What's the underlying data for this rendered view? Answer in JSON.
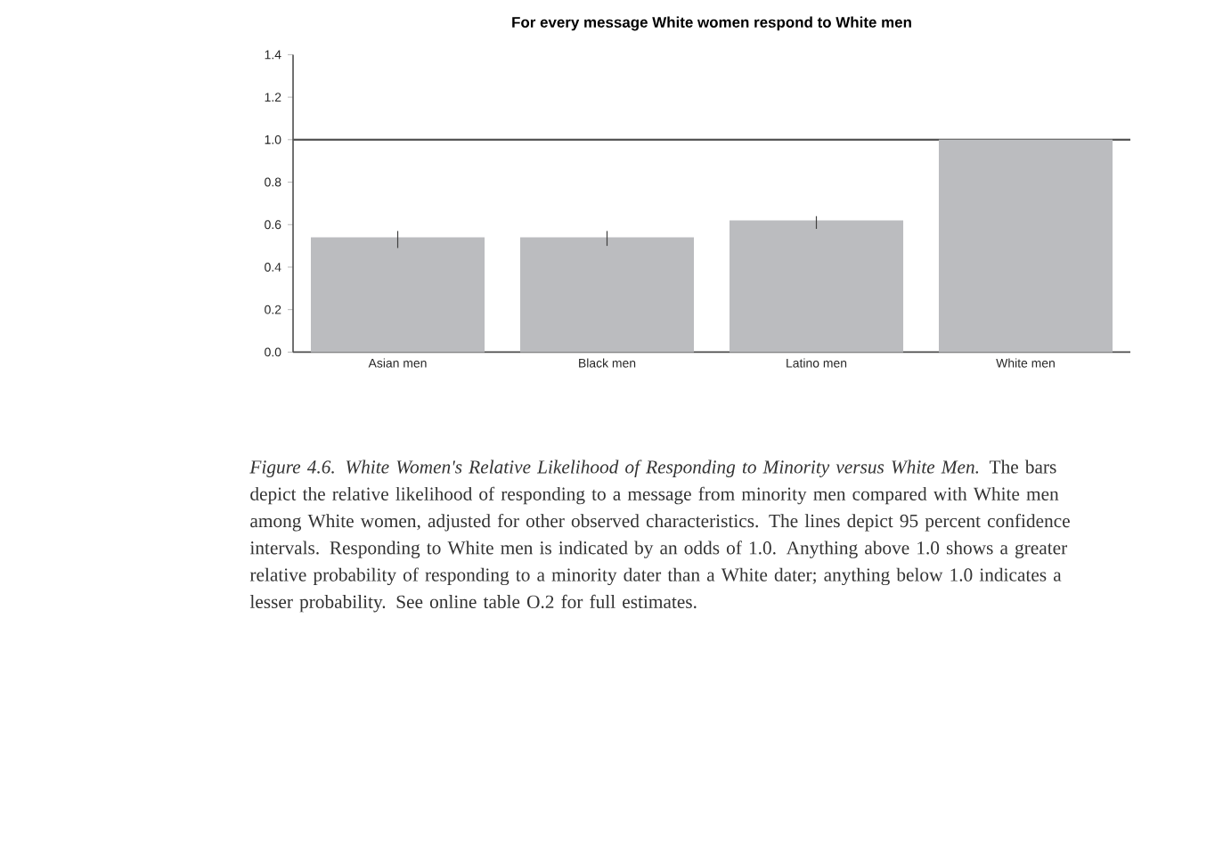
{
  "chart_data": {
    "type": "bar",
    "title": "For every message White women respond to White men",
    "categories": [
      "Asian men",
      "Black men",
      "Latino men",
      "White men"
    ],
    "values": [
      0.54,
      0.54,
      0.62,
      1.0
    ],
    "errors": [
      [
        0.49,
        0.57
      ],
      [
        0.5,
        0.57
      ],
      [
        0.58,
        0.64
      ],
      null
    ],
    "color": "#bbbcbf",
    "ylim": [
      0.0,
      1.4
    ],
    "yticks": [
      {
        "value": 0,
        "label": "0.0"
      },
      0.2,
      0.4,
      0.6,
      0.8,
      {
        "value": 1,
        "label": "1.0"
      },
      1.2,
      1.4
    ],
    "ref_lines": [
      {
        "axis": "y",
        "value": 1.0,
        "color": "#555555"
      }
    ],
    "grid": false,
    "annotations": [
      "*Figure 4.6. White Women's Relative Likelihood of Responding to Minority versus White Men.* The bars depict the relative likelihood of responding to a message from minority men compared with White men among White women, adjusted for other observed characteristics. The lines depict 95 percent confidence intervals. Responding to White men is indicated by an odds of 1.0. Anything above 1.0 shows a greater relative probability of responding to a minority dater than a White dater; anything below 1.0 indicates a lesser probability. See online table O.2 for full estimates."
    ]
  }
}
